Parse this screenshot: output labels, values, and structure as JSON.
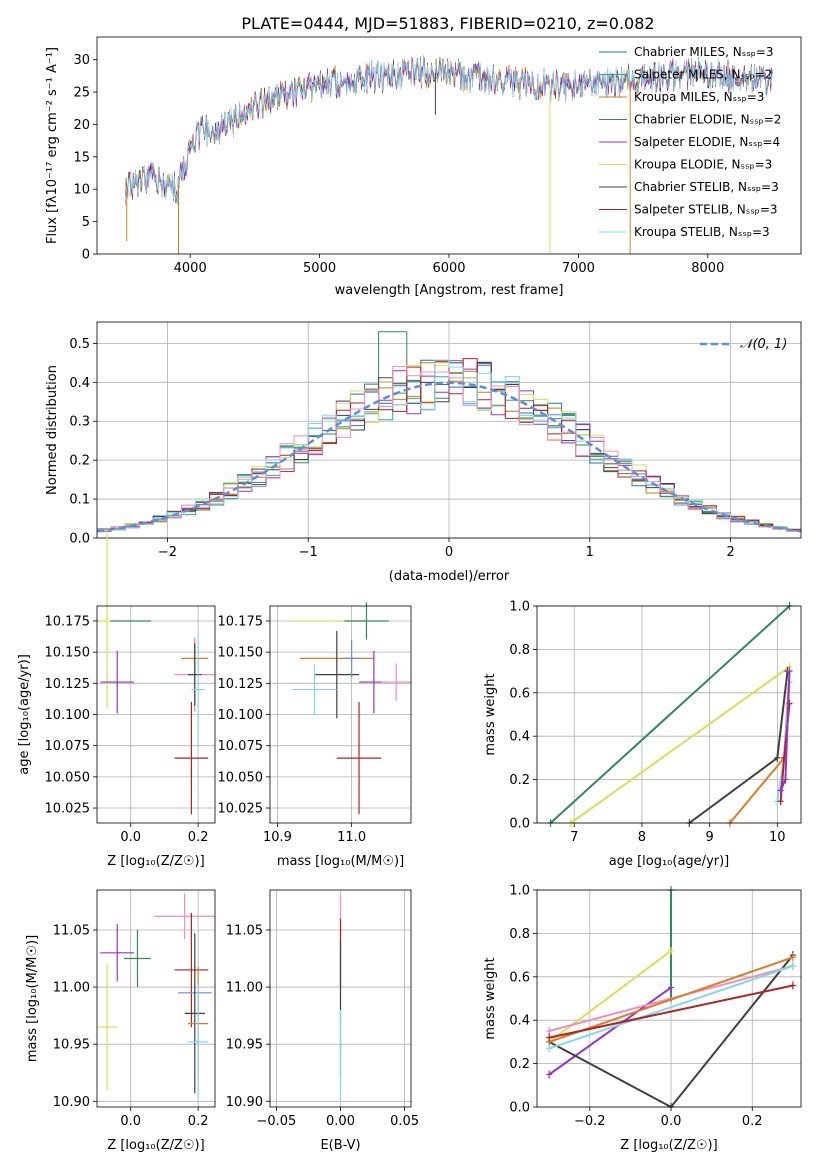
{
  "figure_title": "PLATE=0444, MJD=51883, FIBERID=0210, z=0.082",
  "colors": {
    "chabrier_miles": "#1f77b4",
    "salpeter_miles": "#2ca8a8",
    "kroupa_miles": "#b8860b",
    "chabrier_elodie": "#2e8b57",
    "salpeter_elodie": "#9932cc",
    "kroupa_elodie": "#d4e157",
    "chabrier_stelib": "#404040",
    "salpeter_stelib": "#b22222",
    "kroupa_stelib": "#80d8e8",
    "orange": "#e07b24",
    "pink": "#f08cc0",
    "slateblue": "#6f86e8",
    "normal": "#5b8fd9",
    "grid": "#b0b0b0"
  },
  "chart_data": [
    {
      "id": "spectrum",
      "type": "line",
      "xlabel": "wavelength [Angstrom, rest frame]",
      "ylabel": "Flux [fλ10⁻¹⁷ erg cm⁻² s⁻¹ A⁻¹]",
      "xlim": [
        3280,
        8720
      ],
      "ylim": [
        0,
        33.5
      ],
      "xticks": [
        4000,
        5000,
        6000,
        7000,
        8000
      ],
      "yticks": [
        0,
        5,
        10,
        15,
        20,
        25,
        30
      ],
      "grid": false,
      "legend_position": "top-right",
      "legend": [
        "Chabrier MILES, N_SSP=3",
        "Salpeter MILES, N_SSP=2",
        "Kroupa MILES, N_SSP=3",
        "Chabrier ELODIE, N_SSP=2",
        "Salpeter ELODIE, N_SSP=4",
        "Kroupa ELODIE, N_SSP=3",
        "Chabrier STELIB, N_SSP=3",
        "Salpeter STELIB, N_SSP=3",
        "Kroupa STELIB, N_SSP=3"
      ],
      "continuum": {
        "x": [
          3500,
          3600,
          3700,
          3800,
          3900,
          3950,
          4000,
          4100,
          4200,
          4300,
          4400,
          4500,
          4700,
          4900,
          5100,
          5300,
          5500,
          5700,
          5900,
          6100,
          6300,
          6500,
          6700,
          6900,
          7100,
          7300,
          7500,
          7700,
          7900,
          8100,
          8300,
          8500
        ],
        "y": [
          10,
          11,
          12,
          11,
          10,
          13,
          17,
          19,
          19,
          20,
          22,
          23,
          24.5,
          25.5,
          26.5,
          27,
          27.5,
          28,
          28,
          27.5,
          27,
          26.5,
          26,
          26,
          26,
          26.5,
          27,
          27.5,
          28,
          27.5,
          27,
          26.5
        ]
      },
      "spikes": [
        {
          "x": 3510,
          "y": 2
        },
        {
          "x": 3910,
          "y": 0
        },
        {
          "x": 5895,
          "y": 21.5
        },
        {
          "x": 6780,
          "y": 0
        },
        {
          "x": 7400,
          "y": 0
        }
      ]
    },
    {
      "id": "residuals",
      "type": "step",
      "xlabel": "(data-model)/error",
      "ylabel": "Normed distribution",
      "xlim": [
        -2.5,
        2.5
      ],
      "ylim": [
        0,
        0.555
      ],
      "xticks": [
        -2,
        -1,
        0,
        1,
        2
      ],
      "yticks": [
        0.0,
        0.1,
        0.2,
        0.3,
        0.4,
        0.5
      ],
      "grid": true,
      "legend_position": "top-right",
      "legend": [
        "N(0,1)"
      ],
      "bin_width": 0.1,
      "normal_curve": {
        "mean": 0,
        "sigma": 1,
        "style": "dashed"
      }
    },
    {
      "id": "z_age",
      "type": "scatter",
      "xlabel": "Z [log10(Z/Z☉)]",
      "ylabel": "age  [log10(age/yr)]",
      "xlim": [
        -0.1,
        0.25
      ],
      "ylim": [
        10.013,
        10.187
      ],
      "xticks": [
        0.0,
        0.2
      ],
      "yticks": [
        10.025,
        10.05,
        10.075,
        10.1,
        10.125,
        10.15,
        10.175
      ],
      "grid": true,
      "points": [
        {
          "x": -0.07,
          "y": 10.175,
          "xerr": 0.03,
          "yerr": 0.07,
          "color": "#d4e157"
        },
        {
          "x": 0.0,
          "y": 10.175,
          "xerr": 0.06,
          "yerr": 0.0,
          "color": "#2e8b57"
        },
        {
          "x": -0.04,
          "y": 10.126,
          "xerr": 0.05,
          "yerr": 0.025,
          "color": "#9932cc"
        },
        {
          "x": 0.19,
          "y": 10.145,
          "xerr": 0.04,
          "yerr": 0.015,
          "color": "#e07b24"
        },
        {
          "x": 0.19,
          "y": 10.132,
          "xerr": 0.06,
          "yerr": 0.03,
          "color": "#f08cc0"
        },
        {
          "x": 0.19,
          "y": 10.132,
          "xerr": 0.02,
          "yerr": 0.025,
          "color": "#404040"
        },
        {
          "x": 0.2,
          "y": 10.12,
          "xerr": 0.02,
          "yerr": 0.045,
          "color": "#80d8e8"
        },
        {
          "x": 0.18,
          "y": 10.065,
          "xerr": 0.05,
          "yerr": 0.045,
          "color": "#b22222"
        }
      ]
    },
    {
      "id": "mass_age",
      "type": "scatter",
      "xlabel": "mass [log10(M/M☉)]",
      "ylabel": "",
      "xlim": [
        10.89,
        11.08
      ],
      "ylim": [
        10.013,
        10.187
      ],
      "xticks": [
        10.9,
        11.0
      ],
      "yticks": [
        10.025,
        10.05,
        10.075,
        10.1,
        10.125,
        10.15,
        10.175
      ],
      "grid": true,
      "points": [
        {
          "x": 10.97,
          "y": 10.175,
          "xerr": 0.05,
          "yerr": 0.0,
          "color": "#d4e157"
        },
        {
          "x": 11.02,
          "y": 10.175,
          "xerr": 0.03,
          "yerr": 0.015,
          "color": "#2e8b57"
        },
        {
          "x": 10.98,
          "y": 10.145,
          "xerr": 0.05,
          "yerr": 0.0,
          "color": "#e07b24"
        },
        {
          "x": 11.03,
          "y": 10.126,
          "xerr": 0.02,
          "yerr": 0.025,
          "color": "#9932cc"
        },
        {
          "x": 10.98,
          "y": 10.132,
          "xerr": 0.03,
          "yerr": 0.035,
          "color": "#404040"
        },
        {
          "x": 11.06,
          "y": 10.126,
          "xerr": 0.02,
          "yerr": 0.015,
          "color": "#f08cc0"
        },
        {
          "x": 11.0,
          "y": 10.145,
          "xerr": 0.01,
          "yerr": 0.015,
          "color": "#6f86e8"
        },
        {
          "x": 10.95,
          "y": 10.12,
          "xerr": 0.03,
          "yerr": 0.02,
          "color": "#80d8e8"
        },
        {
          "x": 11.01,
          "y": 10.065,
          "xerr": 0.03,
          "yerr": 0.045,
          "color": "#b22222"
        }
      ]
    },
    {
      "id": "age_weight",
      "type": "line",
      "xlabel": "age  [log10(age/yr)]",
      "ylabel": "mass weight",
      "xlim": [
        6.45,
        10.35
      ],
      "ylim": [
        0,
        1.0
      ],
      "xticks": [
        7,
        8,
        9,
        10
      ],
      "yticks": [
        0.0,
        0.2,
        0.4,
        0.6,
        0.8,
        1.0
      ],
      "grid": true,
      "series": [
        {
          "color": "#2e8b57",
          "x": [
            6.65,
            10.18
          ],
          "y": [
            0.0,
            1.0
          ]
        },
        {
          "color": "#d4e157",
          "x": [
            6.95,
            10.18
          ],
          "y": [
            0.0,
            0.72
          ]
        },
        {
          "color": "#404040",
          "x": [
            8.7,
            10.0,
            10.15
          ],
          "y": [
            0.0,
            0.3,
            0.7
          ]
        },
        {
          "color": "#e07b24",
          "x": [
            9.3,
            10.1,
            10.18
          ],
          "y": [
            0.0,
            0.3,
            0.7
          ]
        },
        {
          "color": "#80d8e8",
          "x": [
            10.0,
            10.1,
            10.18
          ],
          "y": [
            0.1,
            0.3,
            0.65
          ]
        },
        {
          "color": "#b22222",
          "x": [
            10.05,
            10.1,
            10.18
          ],
          "y": [
            0.1,
            0.3,
            0.55
          ]
        },
        {
          "color": "#9932cc",
          "x": [
            10.05,
            10.12,
            10.18
          ],
          "y": [
            0.15,
            0.2,
            0.7
          ]
        }
      ]
    },
    {
      "id": "z_mass",
      "type": "scatter",
      "xlabel": "Z [log10(Z/Z☉)]",
      "ylabel": "mass [log10(M/M☉)]",
      "xlim": [
        -0.1,
        0.25
      ],
      "ylim": [
        10.895,
        11.085
      ],
      "xticks": [
        0.0,
        0.2
      ],
      "yticks": [
        10.9,
        10.95,
        11.0,
        11.05
      ],
      "grid": true,
      "points": [
        {
          "x": -0.04,
          "y": 11.03,
          "xerr": 0.05,
          "yerr": 0.025,
          "color": "#9932cc"
        },
        {
          "x": 0.02,
          "y": 11.025,
          "xerr": 0.04,
          "yerr": 0.025,
          "color": "#2e8b57"
        },
        {
          "x": -0.07,
          "y": 10.965,
          "xerr": 0.03,
          "yerr": 0.055,
          "color": "#d4e157"
        },
        {
          "x": 0.16,
          "y": 11.062,
          "xerr": 0.09,
          "yerr": 0.02,
          "color": "#f08cc0"
        },
        {
          "x": 0.18,
          "y": 11.015,
          "xerr": 0.05,
          "yerr": 0.05,
          "color": "#b22222"
        },
        {
          "x": 0.19,
          "y": 10.995,
          "xerr": 0.05,
          "yerr": 0.0,
          "color": "#6f86e8"
        },
        {
          "x": 0.19,
          "y": 10.977,
          "xerr": 0.03,
          "yerr": 0.07,
          "color": "#404040"
        },
        {
          "x": 0.2,
          "y": 10.968,
          "xerr": 0.03,
          "yerr": 0.05,
          "color": "#e07b24"
        },
        {
          "x": 0.2,
          "y": 10.952,
          "xerr": 0.03,
          "yerr": 0.05,
          "color": "#80d8e8"
        }
      ]
    },
    {
      "id": "ebv_mass",
      "type": "scatter",
      "xlabel": "E(B-V)",
      "ylabel": "",
      "xlim": [
        -0.055,
        0.055
      ],
      "ylim": [
        10.895,
        11.085
      ],
      "xticks": [
        -0.05,
        0.0,
        0.05
      ],
      "yticks": [
        10.9,
        10.95,
        11.0,
        11.05
      ],
      "grid": true,
      "points": [
        {
          "x": 0.0,
          "y": 11.06,
          "xerr": 0.0,
          "yerr": 0.02,
          "color": "#f08cc0"
        },
        {
          "x": 0.0,
          "y": 11.03,
          "xerr": 0.0,
          "yerr": 0.03,
          "color": "#b22222"
        },
        {
          "x": 0.0,
          "y": 10.98,
          "xerr": 0.0,
          "yerr": 0.06,
          "color": "#404040"
        },
        {
          "x": 0.0,
          "y": 10.94,
          "xerr": 0.0,
          "yerr": 0.04,
          "color": "#80d8e8"
        }
      ]
    },
    {
      "id": "z_weight",
      "type": "line",
      "xlabel": "Z [log10(Z/Z☉)]",
      "ylabel": "mass weight",
      "xlim": [
        -0.33,
        0.32
      ],
      "ylim": [
        0,
        1.0
      ],
      "xticks": [
        -0.2,
        0.0,
        0.2
      ],
      "yticks": [
        0.0,
        0.2,
        0.4,
        0.6,
        0.8,
        1.0
      ],
      "grid": true,
      "series": [
        {
          "color": "#2e8b57",
          "x": [
            0.0,
            0.0
          ],
          "y": [
            0.5,
            1.0
          ]
        },
        {
          "color": "#d4e157",
          "x": [
            -0.3,
            0.0
          ],
          "y": [
            0.3,
            0.72
          ]
        },
        {
          "color": "#9932cc",
          "x": [
            -0.3,
            0.0
          ],
          "y": [
            0.15,
            0.55
          ]
        },
        {
          "color": "#404040",
          "x": [
            -0.3,
            0.0,
            0.3
          ],
          "y": [
            0.3,
            0.0,
            0.7
          ]
        },
        {
          "color": "#f08cc0",
          "x": [
            -0.3,
            0.3
          ],
          "y": [
            0.35,
            0.65
          ]
        },
        {
          "color": "#e07b24",
          "x": [
            -0.3,
            0.3
          ],
          "y": [
            0.3,
            0.69
          ]
        },
        {
          "color": "#80d8e8",
          "x": [
            -0.3,
            0.3
          ],
          "y": [
            0.27,
            0.65
          ]
        },
        {
          "color": "#b22222",
          "x": [
            -0.3,
            0.3
          ],
          "y": [
            0.32,
            0.56
          ]
        }
      ]
    }
  ]
}
